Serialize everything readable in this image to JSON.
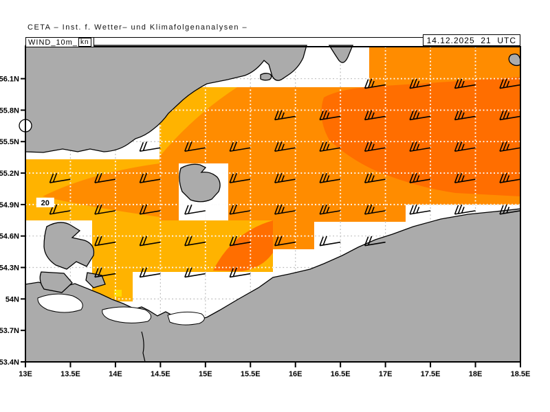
{
  "header": {
    "title": "CETA – Inst. f. Wetter– und Klimafolgenanalysen –",
    "variable": "WIND_10m_",
    "unit": "kn",
    "timestamp": "14.12.2025  21  UTC"
  },
  "colors": {
    "sea": "#FFFFFF",
    "land": "#ABABAB",
    "coastline": "#000000",
    "band_15kn": "#FFD800",
    "band_20kn": "#FFB300",
    "band_25kn": "#FF8C00",
    "band_30kn": "#FF6E00",
    "grid_on_sea": "#b9b9b9",
    "grid_on_fill": "#ffffff",
    "barb": "#000000"
  },
  "map_extent": {
    "lon_min": 13,
    "lon_max": 18.5,
    "lat_min": 53.4,
    "lat_max": 56.405
  },
  "axes": {
    "lat_labels": [
      {
        "text": "56.1N",
        "lat": 56.1
      },
      {
        "text": "55.8N",
        "lat": 55.8
      },
      {
        "text": "55.5N",
        "lat": 55.5
      },
      {
        "text": "55.2N",
        "lat": 55.2
      },
      {
        "text": "54.9N",
        "lat": 54.9
      },
      {
        "text": "54.6N",
        "lat": 54.6
      },
      {
        "text": "54.3N",
        "lat": 54.3
      },
      {
        "text": "54N",
        "lat": 54.0
      },
      {
        "text": "53.7N",
        "lat": 53.7
      },
      {
        "text": "53.4N",
        "lat": 53.4
      }
    ],
    "lon_labels": [
      {
        "text": "13E",
        "lon": 13.0
      },
      {
        "text": "13.5E",
        "lon": 13.5
      },
      {
        "text": "14E",
        "lon": 14.0
      },
      {
        "text": "14.5E",
        "lon": 14.5
      },
      {
        "text": "15E",
        "lon": 15.0
      },
      {
        "text": "15.5E",
        "lon": 15.5
      },
      {
        "text": "16E",
        "lon": 16.0
      },
      {
        "text": "16.5E",
        "lon": 16.5
      },
      {
        "text": "17E",
        "lon": 17.0
      },
      {
        "text": "17.5E",
        "lon": 17.5
      },
      {
        "text": "18E",
        "lon": 18.0
      },
      {
        "text": "18.5E",
        "lon": 18.5
      }
    ],
    "grid_lats": [
      53.7,
      54.0,
      54.3,
      54.6,
      54.9,
      55.2,
      55.5,
      55.8,
      56.1
    ],
    "grid_lons": [
      13.5,
      14.0,
      14.5,
      15.0,
      15.5,
      16.0,
      16.5,
      17.0,
      17.5,
      18.0
    ]
  },
  "contour_label": {
    "text": "20",
    "lon": 13.22,
    "lat": 54.92
  },
  "wind_barbs": [
    {
      "lon": 17.0,
      "lat": 56.1,
      "kn": 25
    },
    {
      "lon": 17.5,
      "lat": 56.1,
      "kn": 25
    },
    {
      "lon": 18.0,
      "lat": 56.1,
      "kn": 25
    },
    {
      "lon": 18.5,
      "lat": 56.1,
      "kn": 25
    },
    {
      "lon": 16.0,
      "lat": 55.8,
      "kn": 25
    },
    {
      "lon": 16.5,
      "lat": 55.8,
      "kn": 25
    },
    {
      "lon": 17.0,
      "lat": 55.8,
      "kn": 25
    },
    {
      "lon": 17.5,
      "lat": 55.8,
      "kn": 25
    },
    {
      "lon": 18.0,
      "lat": 55.8,
      "kn": 25
    },
    {
      "lon": 18.5,
      "lat": 55.8,
      "kn": 25
    },
    {
      "lon": 14.5,
      "lat": 55.5,
      "kn": 20
    },
    {
      "lon": 15.0,
      "lat": 55.5,
      "kn": 20
    },
    {
      "lon": 15.5,
      "lat": 55.5,
      "kn": 20
    },
    {
      "lon": 16.0,
      "lat": 55.5,
      "kn": 25
    },
    {
      "lon": 16.5,
      "lat": 55.5,
      "kn": 25
    },
    {
      "lon": 17.0,
      "lat": 55.5,
      "kn": 25
    },
    {
      "lon": 17.5,
      "lat": 55.5,
      "kn": 25
    },
    {
      "lon": 18.0,
      "lat": 55.5,
      "kn": 25
    },
    {
      "lon": 18.5,
      "lat": 55.5,
      "kn": 25
    },
    {
      "lon": 13.5,
      "lat": 55.2,
      "kn": 20
    },
    {
      "lon": 14.0,
      "lat": 55.2,
      "kn": 20
    },
    {
      "lon": 14.5,
      "lat": 55.2,
      "kn": 20
    },
    {
      "lon": 15.5,
      "lat": 55.2,
      "kn": 20
    },
    {
      "lon": 16.0,
      "lat": 55.2,
      "kn": 25
    },
    {
      "lon": 16.5,
      "lat": 55.2,
      "kn": 25
    },
    {
      "lon": 17.0,
      "lat": 55.2,
      "kn": 25
    },
    {
      "lon": 17.5,
      "lat": 55.2,
      "kn": 25
    },
    {
      "lon": 18.0,
      "lat": 55.2,
      "kn": 25
    },
    {
      "lon": 18.5,
      "lat": 55.2,
      "kn": 25
    },
    {
      "lon": 13.5,
      "lat": 54.9,
      "kn": 20
    },
    {
      "lon": 14.0,
      "lat": 54.9,
      "kn": 20
    },
    {
      "lon": 14.5,
      "lat": 54.9,
      "kn": 20
    },
    {
      "lon": 15.0,
      "lat": 54.9,
      "kn": 20
    },
    {
      "lon": 15.5,
      "lat": 54.9,
      "kn": 20
    },
    {
      "lon": 16.0,
      "lat": 54.9,
      "kn": 25
    },
    {
      "lon": 16.5,
      "lat": 54.9,
      "kn": 25
    },
    {
      "lon": 17.0,
      "lat": 54.9,
      "kn": 25
    },
    {
      "lon": 17.5,
      "lat": 54.9,
      "kn": 25
    },
    {
      "lon": 18.0,
      "lat": 54.9,
      "kn": 25
    },
    {
      "lon": 18.5,
      "lat": 54.9,
      "kn": 25
    },
    {
      "lon": 14.0,
      "lat": 54.6,
      "kn": 20
    },
    {
      "lon": 14.5,
      "lat": 54.6,
      "kn": 20
    },
    {
      "lon": 15.0,
      "lat": 54.6,
      "kn": 20
    },
    {
      "lon": 15.5,
      "lat": 54.6,
      "kn": 20
    },
    {
      "lon": 16.0,
      "lat": 54.6,
      "kn": 20
    },
    {
      "lon": 16.5,
      "lat": 54.6,
      "kn": 20
    },
    {
      "lon": 17.0,
      "lat": 54.6,
      "kn": 20
    },
    {
      "lon": 14.0,
      "lat": 54.3,
      "kn": 20
    },
    {
      "lon": 14.5,
      "lat": 54.3,
      "kn": 20
    },
    {
      "lon": 15.0,
      "lat": 54.3,
      "kn": 20
    },
    {
      "lon": 15.5,
      "lat": 54.3,
      "kn": 20
    }
  ]
}
